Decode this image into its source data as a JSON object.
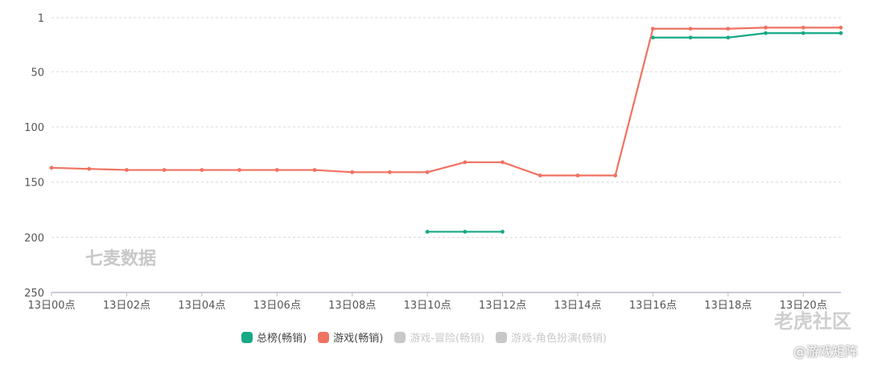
{
  "chart_data": {
    "type": "line",
    "title": "",
    "y_reversed": true,
    "ylim": [
      1,
      250
    ],
    "y_ticks": [
      "1",
      "50",
      "100",
      "150",
      "200",
      "250"
    ],
    "y_tick_values": [
      1,
      50,
      100,
      150,
      200,
      250
    ],
    "x_categories": [
      "13日00点",
      "13日01点",
      "13日02点",
      "13日03点",
      "13日04点",
      "13日05点",
      "13日06点",
      "13日07点",
      "13日08点",
      "13日09点",
      "13日10点",
      "13日11点",
      "13日12点",
      "13日13点",
      "13日14点",
      "13日15点",
      "13日16点",
      "13日17点",
      "13日18点",
      "13日19点",
      "13日20点",
      "13日21点"
    ],
    "x_tick_labels": [
      "13日00点",
      "13日02点",
      "13日04点",
      "13日06点",
      "13日08点",
      "13日10点",
      "13日12点",
      "13日14点",
      "13日16点",
      "13日18点",
      "13日20点"
    ],
    "grid": true,
    "legend_position": "bottom",
    "series": [
      {
        "name": "总榜(畅销)",
        "color": "#16a985",
        "values": [
          null,
          null,
          null,
          null,
          null,
          null,
          null,
          null,
          null,
          null,
          195,
          195,
          195,
          null,
          null,
          null,
          19,
          19,
          19,
          15,
          15,
          15
        ]
      },
      {
        "name": "游戏(畅销)",
        "color": "#f07261",
        "values": [
          137,
          138,
          139,
          139,
          139,
          139,
          139,
          139,
          141,
          141,
          141,
          132,
          132,
          144,
          144,
          144,
          11,
          11,
          11,
          10,
          10,
          10
        ]
      },
      {
        "name": "游戏-冒险(畅销)",
        "color": "#c8c8c8",
        "values": []
      },
      {
        "name": "游戏-角色扮演(畅销)",
        "color": "#c8c8c8",
        "values": []
      }
    ]
  },
  "watermark": "七麦数据",
  "corner_watermark": "老虎社区",
  "corner_sub": "@游戏矩阵"
}
